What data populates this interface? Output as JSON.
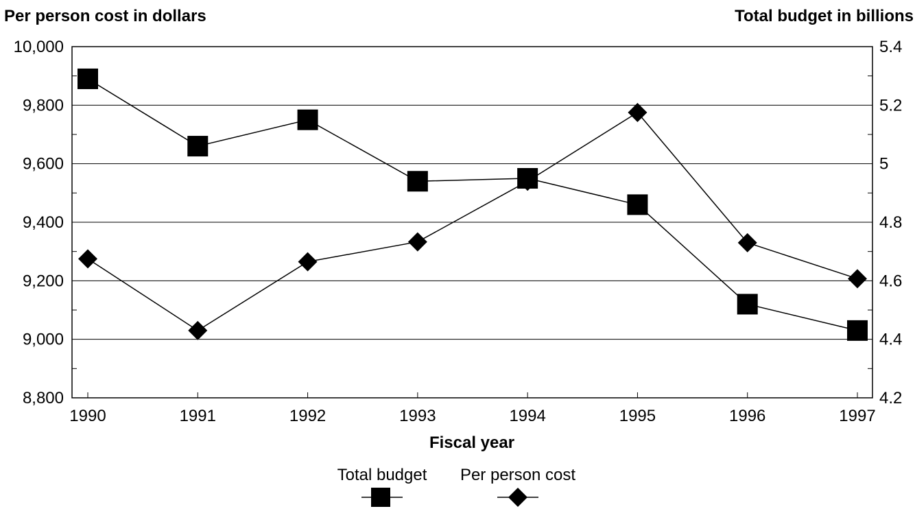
{
  "chart_data": {
    "type": "line",
    "left_axis_title": "Per person cost in dollars",
    "right_axis_title": "Total budget in billions",
    "xlabel": "Fiscal year",
    "categories": [
      "1990",
      "1991",
      "1992",
      "1993",
      "1994",
      "1995",
      "1996",
      "1997"
    ],
    "left_ticks": [
      "10,000",
      "9,800",
      "9,600",
      "9,400",
      "9,200",
      "9,000",
      "8,800"
    ],
    "right_ticks": [
      "5.4",
      "5.2",
      "5",
      "4.8",
      "4.6",
      "4.4",
      "4.2"
    ],
    "left_ylim": [
      8800,
      10000
    ],
    "right_ylim": [
      4.2,
      5.4
    ],
    "grid": true,
    "legend_position": "bottom-center",
    "series": [
      {
        "name": "Total budget",
        "axis": "right",
        "marker": "square",
        "values": [
          5.29,
          5.06,
          5.15,
          4.94,
          4.95,
          4.86,
          4.52,
          4.43
        ]
      },
      {
        "name": "Per person cost",
        "axis": "left",
        "marker": "diamond",
        "values": [
          9275,
          9030,
          9265,
          9333,
          9540,
          9775,
          9330,
          9207
        ]
      }
    ],
    "colors": {
      "line": "#000000",
      "grid": "#000000",
      "background": "#ffffff"
    }
  }
}
